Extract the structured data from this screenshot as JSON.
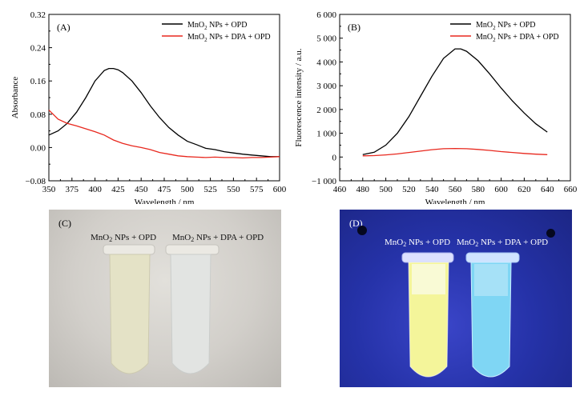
{
  "chart_data": [
    {
      "type": "line",
      "panel": "(A)",
      "xlabel": "Wavelength / nm",
      "ylabel": "Absorbance",
      "xlim": [
        350,
        600
      ],
      "ylim": [
        -0.08,
        0.32
      ],
      "xticks": [
        350,
        375,
        400,
        425,
        450,
        475,
        500,
        525,
        550,
        575,
        600
      ],
      "yticks": [
        -0.08,
        0.0,
        0.08,
        0.16,
        0.24,
        0.32
      ],
      "ytick_labels": [
        "−0.08",
        "0.00",
        "0.08",
        "0.16",
        "0.24",
        "0.32"
      ],
      "legend_position": "top-right",
      "series": [
        {
          "name": "MnO2 NPs + OPD",
          "name_main": "MnO",
          "name_sub": "2",
          "name_rest": " NPs + OPD",
          "color": "#000000",
          "x": [
            350,
            360,
            370,
            380,
            390,
            400,
            410,
            415,
            420,
            425,
            430,
            440,
            450,
            460,
            470,
            480,
            490,
            500,
            510,
            520,
            530,
            540,
            550,
            560,
            570,
            580,
            590,
            600
          ],
          "y": [
            0.03,
            0.04,
            0.058,
            0.085,
            0.12,
            0.16,
            0.185,
            0.19,
            0.19,
            0.187,
            0.18,
            0.16,
            0.132,
            0.1,
            0.072,
            0.048,
            0.03,
            0.015,
            0.007,
            -0.002,
            -0.005,
            -0.01,
            -0.013,
            -0.016,
            -0.018,
            -0.02,
            -0.022,
            -0.022
          ]
        },
        {
          "name": "MnO2 NPs + DPA + OPD",
          "name_main": "MnO",
          "name_sub": "2",
          "name_rest": " NPs + DPA + OPD",
          "color": "#e8281e",
          "x": [
            350,
            360,
            370,
            380,
            390,
            400,
            410,
            420,
            430,
            440,
            450,
            460,
            470,
            480,
            490,
            500,
            510,
            520,
            530,
            540,
            550,
            560,
            570,
            580,
            590,
            600
          ],
          "y": [
            0.09,
            0.068,
            0.058,
            0.052,
            0.045,
            0.038,
            0.03,
            0.018,
            0.01,
            0.004,
            0.0,
            -0.005,
            -0.012,
            -0.016,
            -0.02,
            -0.022,
            -0.023,
            -0.024,
            -0.023,
            -0.024,
            -0.024,
            -0.025,
            -0.024,
            -0.024,
            -0.023,
            -0.022
          ]
        }
      ]
    },
    {
      "type": "line",
      "panel": "(B)",
      "xlabel": "Wavelength / nm",
      "ylabel": "Fluorescence intensity / a.u.",
      "xlim": [
        460,
        660
      ],
      "ylim": [
        -1000,
        6000
      ],
      "xticks": [
        460,
        480,
        500,
        520,
        540,
        560,
        580,
        600,
        620,
        640,
        660
      ],
      "yticks": [
        -1000,
        0,
        1000,
        2000,
        3000,
        4000,
        5000,
        6000
      ],
      "ytick_labels": [
        "−1 000",
        "0",
        "1 000",
        "2 000",
        "3 000",
        "4 000",
        "5 000",
        "6 000"
      ],
      "legend_position": "top-right",
      "series": [
        {
          "name": "MnO2 NPs + OPD",
          "name_main": "MnO",
          "name_sub": "2",
          "name_rest": " NPs + OPD",
          "color": "#000000",
          "x": [
            480,
            490,
            500,
            510,
            520,
            530,
            540,
            550,
            560,
            565,
            570,
            580,
            590,
            600,
            610,
            620,
            630,
            640
          ],
          "y": [
            100,
            200,
            500,
            1000,
            1700,
            2550,
            3400,
            4150,
            4550,
            4550,
            4450,
            4050,
            3500,
            2900,
            2350,
            1850,
            1400,
            1050
          ]
        },
        {
          "name": "MnO2 NPs + DPA + OPD",
          "name_main": "MnO",
          "name_sub": "2",
          "name_rest": " NPs + DPA + OPD",
          "color": "#e8281e",
          "x": [
            480,
            490,
            500,
            510,
            520,
            530,
            540,
            550,
            560,
            570,
            580,
            590,
            600,
            610,
            620,
            630,
            640
          ],
          "y": [
            50,
            60,
            90,
            130,
            190,
            250,
            310,
            350,
            360,
            350,
            320,
            280,
            230,
            190,
            150,
            120,
            100
          ]
        }
      ]
    }
  ],
  "photo_c": {
    "panel": "(C)",
    "label_left": {
      "main": "MnO",
      "sub": "2",
      "rest": " NPs + OPD"
    },
    "label_right": {
      "main": "MnO",
      "sub": "2",
      "rest": " NPs + DPA + OPD"
    },
    "tube_left_color": "#e4e2c6",
    "tube_right_color": "#e2e4e2"
  },
  "photo_d": {
    "panel": "(D)",
    "label_left": {
      "main": "MnO",
      "sub": "2",
      "rest": " NPs + OPD"
    },
    "label_right": {
      "main": "MnO",
      "sub": "2",
      "rest": " NPs + DPA + OPD"
    },
    "tube_left_color": "#f4f59a",
    "tube_right_color": "#7fd6f4"
  }
}
